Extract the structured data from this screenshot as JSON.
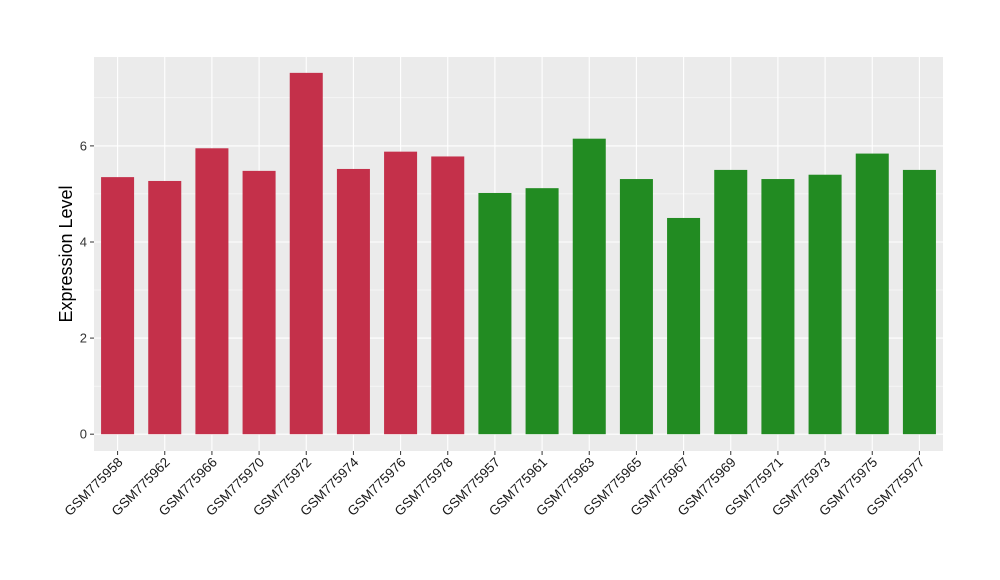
{
  "chart_data": {
    "type": "bar",
    "ylabel": "Expression Level",
    "xlabel": "",
    "ylim": [
      -0.35,
      7.85
    ],
    "yticks": [
      0,
      2,
      4,
      6
    ],
    "grid": true,
    "categories": [
      "GSM775958",
      "GSM775962",
      "GSM775966",
      "GSM775970",
      "GSM775972",
      "GSM775974",
      "GSM775976",
      "GSM775978",
      "GSM775957",
      "GSM775961",
      "GSM775963",
      "GSM775965",
      "GSM775967",
      "GSM775969",
      "GSM775971",
      "GSM775973",
      "GSM775975",
      "GSM775977"
    ],
    "values": [
      5.35,
      5.27,
      5.95,
      5.48,
      7.52,
      5.52,
      5.88,
      5.78,
      5.02,
      5.12,
      6.15,
      5.31,
      4.5,
      5.5,
      5.31,
      5.4,
      5.84,
      5.5
    ],
    "colors": [
      "#c4304a",
      "#c4304a",
      "#c4304a",
      "#c4304a",
      "#c4304a",
      "#c4304a",
      "#c4304a",
      "#c4304a",
      "#228b22",
      "#228b22",
      "#228b22",
      "#228b22",
      "#228b22",
      "#228b22",
      "#228b22",
      "#228b22",
      "#228b22",
      "#228b22"
    ],
    "panel_background": "#ebebeb",
    "grid_color": "#ffffff"
  }
}
